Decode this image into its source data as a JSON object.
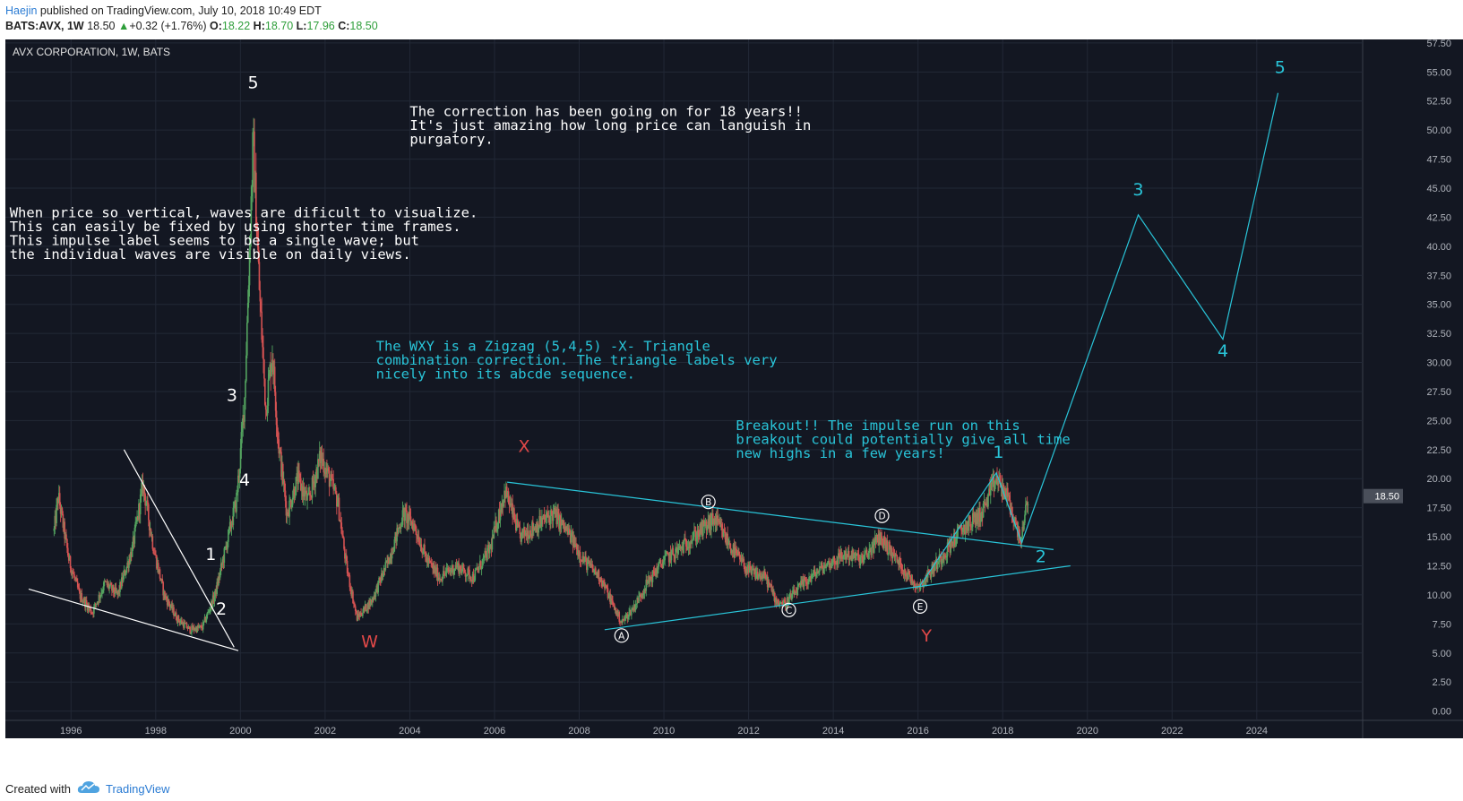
{
  "header": {
    "author": "Haejin",
    "published": "published on TradingView.com, July 10, 2018 10:49 EDT",
    "symbol_tf": "BATS:AVX, 1W",
    "last": "18.50",
    "change": "+0.32 (+1.76%)",
    "o_label": "O:",
    "o_val": "18.22",
    "h_label": "H:",
    "h_val": "18.70",
    "l_label": "L:",
    "l_val": "17.96",
    "c_label": "C:",
    "c_val": "18.50"
  },
  "footer": {
    "created_with": "Created with",
    "brand": "TradingView"
  },
  "colors": {
    "background": "#131722",
    "grid": "#222836",
    "text": "#e0e0e0",
    "axis_text": "#b0b4bc",
    "cyan": "#29c4d8",
    "red": "#e04848",
    "white": "#ffffff",
    "candle_up": "#53a35f",
    "candle_down": "#d45252"
  },
  "chart_data": {
    "type": "candlestick",
    "title": "AVX CORPORATION, 1W, BATS",
    "x_range": [
      1994.45,
      2026.5
    ],
    "y_range": [
      -0.8,
      57.8
    ],
    "x_ticks": [
      1996,
      1998,
      2000,
      2002,
      2004,
      2006,
      2008,
      2010,
      2012,
      2014,
      2016,
      2018,
      2020,
      2022,
      2024
    ],
    "y_ticks": [
      "0.00",
      "2.50",
      "5.00",
      "7.50",
      "10.00",
      "12.50",
      "15.00",
      "17.50",
      "20.00",
      "22.50",
      "25.00",
      "27.50",
      "30.00",
      "32.50",
      "35.00",
      "37.50",
      "40.00",
      "42.50",
      "45.00",
      "47.50",
      "50.00",
      "52.50",
      "55.00",
      "57.50"
    ],
    "last_price": "18.50",
    "price_path": [
      [
        1995.6,
        15.5
      ],
      [
        1995.7,
        18.5
      ],
      [
        1995.95,
        13
      ],
      [
        1996.2,
        10
      ],
      [
        1996.5,
        8.5
      ],
      [
        1996.8,
        11
      ],
      [
        1997.1,
        10
      ],
      [
        1997.45,
        14
      ],
      [
        1997.7,
        19.5
      ],
      [
        1997.95,
        14
      ],
      [
        1998.2,
        10
      ],
      [
        1998.5,
        8
      ],
      [
        1998.8,
        7
      ],
      [
        1999.1,
        7.2
      ],
      [
        1999.4,
        10
      ],
      [
        1999.65,
        14
      ],
      [
        1999.9,
        18
      ],
      [
        2000.0,
        22
      ],
      [
        2000.1,
        27
      ],
      [
        2000.2,
        38
      ],
      [
        2000.3,
        49
      ],
      [
        2000.45,
        36
      ],
      [
        2000.6,
        26
      ],
      [
        2000.75,
        31
      ],
      [
        2000.9,
        23
      ],
      [
        2001.1,
        17
      ],
      [
        2001.35,
        20
      ],
      [
        2001.6,
        18
      ],
      [
        2001.9,
        22
      ],
      [
        2002.1,
        20
      ],
      [
        2002.3,
        18
      ],
      [
        2002.5,
        12.5
      ],
      [
        2002.75,
        8
      ],
      [
        2003.1,
        9.5
      ],
      [
        2003.5,
        13
      ],
      [
        2003.85,
        17
      ],
      [
        2004.1,
        16
      ],
      [
        2004.4,
        13
      ],
      [
        2004.7,
        11.5
      ],
      [
        2005.1,
        12.5
      ],
      [
        2005.5,
        11.5
      ],
      [
        2005.9,
        14
      ],
      [
        2006.25,
        19
      ],
      [
        2006.6,
        15
      ],
      [
        2007.0,
        16
      ],
      [
        2007.4,
        17
      ],
      [
        2007.8,
        15
      ],
      [
        2008.1,
        13
      ],
      [
        2008.5,
        11.5
      ],
      [
        2008.75,
        9.5
      ],
      [
        2009.0,
        7.6
      ],
      [
        2009.3,
        9
      ],
      [
        2009.6,
        11
      ],
      [
        2010.0,
        13
      ],
      [
        2010.4,
        14
      ],
      [
        2010.7,
        15
      ],
      [
        2011.2,
        16.5
      ],
      [
        2011.6,
        14
      ],
      [
        2012.0,
        12
      ],
      [
        2012.4,
        11.5
      ],
      [
        2012.65,
        9.5
      ],
      [
        2012.85,
        9.2
      ],
      [
        2013.3,
        11
      ],
      [
        2013.8,
        12.5
      ],
      [
        2014.3,
        13.5
      ],
      [
        2014.7,
        13
      ],
      [
        2015.1,
        15
      ],
      [
        2015.5,
        13
      ],
      [
        2015.9,
        11
      ],
      [
        2016.05,
        10.8
      ],
      [
        2016.5,
        13
      ],
      [
        2017.0,
        15.5
      ],
      [
        2017.5,
        17
      ],
      [
        2017.85,
        20
      ],
      [
        2018.1,
        18.5
      ],
      [
        2018.3,
        16
      ],
      [
        2018.45,
        14.8
      ],
      [
        2018.6,
        18.5
      ]
    ],
    "lines": [
      {
        "color": "white",
        "points": [
          [
            1995.0,
            10.5
          ],
          [
            1999.95,
            5.2
          ]
        ]
      },
      {
        "color": "white",
        "points": [
          [
            1997.25,
            22.5
          ],
          [
            1999.85,
            5.5
          ]
        ]
      },
      {
        "color": "cyan",
        "points": [
          [
            2006.3,
            19.7
          ],
          [
            2019.2,
            13.9
          ]
        ]
      },
      {
        "color": "cyan",
        "points": [
          [
            2008.6,
            7.0
          ],
          [
            2019.6,
            12.5
          ]
        ]
      },
      {
        "color": "cyan",
        "points": [
          [
            2016.05,
            10.8
          ],
          [
            2017.85,
            20.5
          ],
          [
            2018.45,
            14.5
          ],
          [
            2021.2,
            42.7
          ],
          [
            2023.2,
            32.0
          ],
          [
            2024.5,
            53.2
          ]
        ]
      }
    ],
    "wave_labels": [
      {
        "text": "5",
        "x": 2000.3,
        "y": 53.6,
        "color": "white"
      },
      {
        "text": "3",
        "x": 1999.8,
        "y": 26.7,
        "color": "white"
      },
      {
        "text": "4",
        "x": 2000.1,
        "y": 19.4,
        "color": "white"
      },
      {
        "text": "1",
        "x": 1999.3,
        "y": 13.0,
        "color": "white"
      },
      {
        "text": "2",
        "x": 1999.55,
        "y": 8.3,
        "color": "white"
      },
      {
        "text": "X",
        "x": 2006.7,
        "y": 22.3,
        "color": "red"
      },
      {
        "text": "W",
        "x": 2003.05,
        "y": 5.5,
        "color": "red"
      },
      {
        "text": "Y",
        "x": 2016.2,
        "y": 6.0,
        "color": "red"
      },
      {
        "text": "1",
        "x": 2017.9,
        "y": 21.8,
        "color": "cyan"
      },
      {
        "text": "2",
        "x": 2018.9,
        "y": 12.8,
        "color": "cyan"
      },
      {
        "text": "3",
        "x": 2021.2,
        "y": 44.4,
        "color": "cyan"
      },
      {
        "text": "4",
        "x": 2023.2,
        "y": 30.5,
        "color": "cyan"
      },
      {
        "text": "5",
        "x": 2024.55,
        "y": 54.9,
        "color": "cyan"
      }
    ],
    "circle_labels": [
      {
        "text": "A",
        "x": 2009.0,
        "y": 6.5
      },
      {
        "text": "B",
        "x": 2011.05,
        "y": 18.0
      },
      {
        "text": "C",
        "x": 2012.95,
        "y": 8.7
      },
      {
        "text": "D",
        "x": 2015.15,
        "y": 16.8
      },
      {
        "text": "E",
        "x": 2016.05,
        "y": 9.0
      }
    ],
    "annotations": [
      {
        "color": "white",
        "x": 1994.55,
        "y": 42.5,
        "lines": [
          "When price so vertical, waves are dificult to visualize.",
          "This can easily be fixed by using shorter time frames.",
          "This impulse label seems to be a single wave; but",
          "the individual waves are visible on daily views."
        ]
      },
      {
        "color": "white",
        "x": 2004.0,
        "y": 51.2,
        "lines": [
          "The correction has been going on for 18 years!!",
          "It's just amazing how long price can languish in",
          "purgatory."
        ]
      },
      {
        "color": "cyan",
        "x": 2003.2,
        "y": 31.0,
        "lines": [
          "The WXY is a Zigzag (5,4,5) -X- Triangle",
          "combination correction. The triangle labels very",
          "nicely into its abcde sequence."
        ]
      },
      {
        "color": "cyan",
        "x": 2011.7,
        "y": 24.2,
        "lines": [
          "Breakout!! The impulse run on this",
          "breakout could potentially give all time",
          "new highs in a few years!"
        ]
      }
    ]
  }
}
